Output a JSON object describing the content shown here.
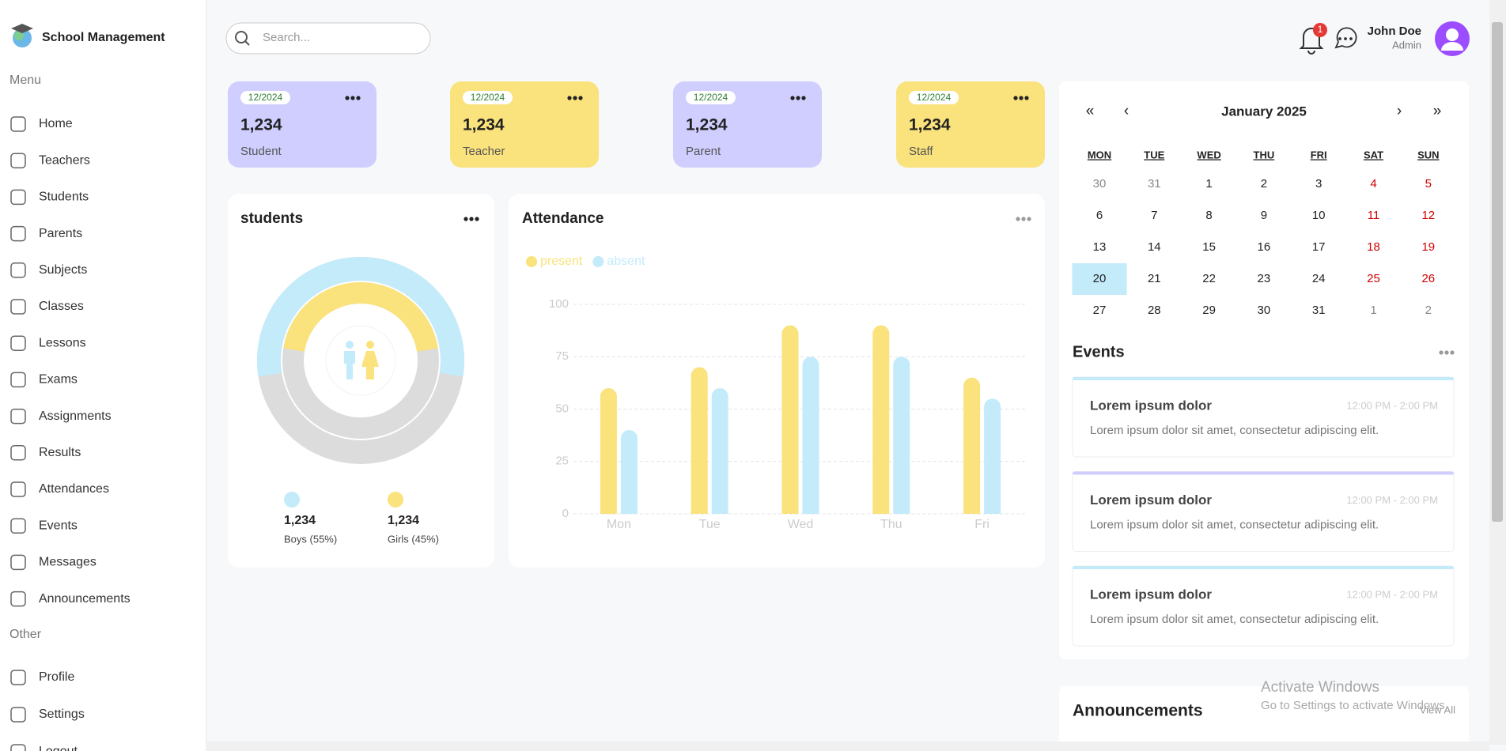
{
  "sidebar": {
    "brand": "School Management",
    "menu_title": "Menu",
    "menu": [
      "Home",
      "Teachers",
      "Students",
      "Parents",
      "Subjects",
      "Classes",
      "Lessons",
      "Exams",
      "Assignments",
      "Results",
      "Attendances",
      "Events",
      "Messages",
      "Announcements"
    ],
    "other_title": "Other",
    "other": [
      "Profile",
      "Settings",
      "Logout"
    ]
  },
  "header": {
    "search_placeholder": "Search...",
    "notifications": 1,
    "user_name": "John Doe",
    "user_role": "Admin"
  },
  "cards": [
    {
      "date": "12/2024",
      "value": "1,234",
      "label": "Student",
      "color": "#CFCEFF"
    },
    {
      "date": "12/2024",
      "value": "1,234",
      "label": "Teacher",
      "color": "#FAE27C"
    },
    {
      "date": "12/2024",
      "value": "1,234",
      "label": "Parent",
      "color": "#CFCEFF"
    },
    {
      "date": "12/2024",
      "value": "1,234",
      "label": "Staff",
      "color": "#FAE27C"
    }
  ],
  "students_chart": {
    "type": "radial",
    "title": "students",
    "items": [
      {
        "name": "Boys",
        "percent": 55,
        "count": "1,234",
        "label": "Boys (55%)",
        "color": "#C3EBFA"
      },
      {
        "name": "Girls",
        "percent": 45,
        "count": "1,234",
        "label": "Girls (45%)",
        "color": "#FAE27C"
      }
    ]
  },
  "attendance_chart": {
    "type": "bar",
    "title": "Attendance",
    "categories": [
      "Mon",
      "Tue",
      "Wed",
      "Thu",
      "Fri"
    ],
    "series": [
      {
        "name": "present",
        "color": "#FAE27C",
        "values": [
          60,
          70,
          90,
          90,
          65
        ]
      },
      {
        "name": "absent",
        "color": "#C3EBFA",
        "values": [
          40,
          60,
          75,
          75,
          55
        ]
      }
    ],
    "ylim": [
      0,
      100
    ],
    "yticks": [
      0,
      25,
      50,
      75,
      100
    ],
    "grid": true,
    "legend": "top-left"
  },
  "calendar": {
    "title": "January 2025",
    "nav": [
      "«",
      "‹",
      "›",
      "»"
    ],
    "weekdays": [
      "MON",
      "TUE",
      "WED",
      "THU",
      "FRI",
      "SAT",
      "SUN"
    ],
    "weeks": [
      [
        30,
        31,
        1,
        2,
        3,
        4,
        5
      ],
      [
        6,
        7,
        8,
        9,
        10,
        11,
        12
      ],
      [
        13,
        14,
        15,
        16,
        17,
        18,
        19
      ],
      [
        20,
        21,
        22,
        23,
        24,
        25,
        26
      ],
      [
        27,
        28,
        29,
        30,
        31,
        1,
        2
      ]
    ],
    "selected": 20
  },
  "events": {
    "title": "Events",
    "items": [
      {
        "title": "Lorem ipsum dolor",
        "time": "12:00 PM - 2:00 PM",
        "description": "Lorem ipsum dolor sit amet, consectetur adipiscing elit.",
        "color": "#C3EBFA"
      },
      {
        "title": "Lorem ipsum dolor",
        "time": "12:00 PM - 2:00 PM",
        "description": "Lorem ipsum dolor sit amet, consectetur adipiscing elit.",
        "color": "#CFCEFF"
      },
      {
        "title": "Lorem ipsum dolor",
        "time": "12:00 PM - 2:00 PM",
        "description": "Lorem ipsum dolor sit amet, consectetur adipiscing elit.",
        "color": "#C3EBFA"
      }
    ]
  },
  "announcements": {
    "title": "Announcements",
    "link": "View All"
  },
  "os_watermark": {
    "title": "Activate Windows",
    "subtitle": "Go to Settings to activate Windows."
  }
}
